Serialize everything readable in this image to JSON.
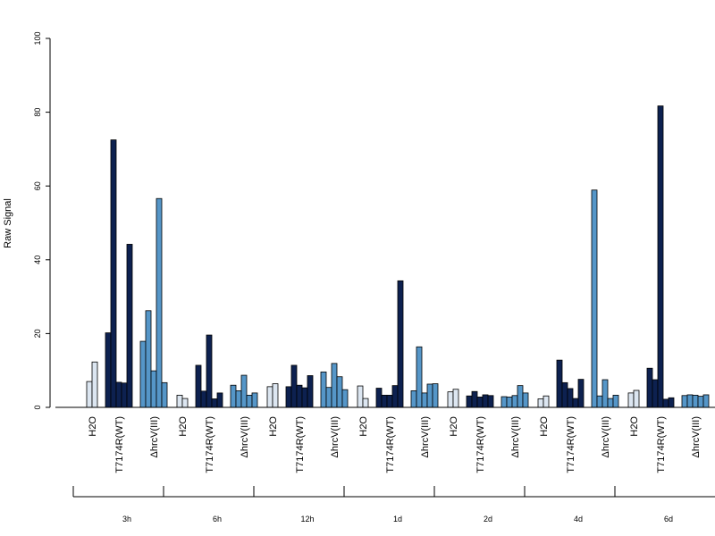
{
  "chart_data": {
    "type": "bar",
    "ylabel": "Raw Signal",
    "ylim": [
      0,
      100
    ],
    "yticks": [
      0,
      20,
      40,
      60,
      80,
      100
    ],
    "colors": {
      "H2O": "#dce6f1",
      "T7174R(WT)": "#0d2150",
      "ΔhrcV(III)": "#5596c8",
      "stroke": "#000000"
    },
    "groups": [
      {
        "label": "3h",
        "conditions": [
          {
            "label": "H2O",
            "values": [
              7.0,
              12.3
            ]
          },
          {
            "label": "T7174R(WT)",
            "values": [
              20.2,
              72.5,
              6.8,
              6.6,
              44.2
            ]
          },
          {
            "label": "ΔhrcV(III)",
            "values": [
              17.9,
              26.2,
              9.9,
              56.6,
              6.7
            ]
          }
        ]
      },
      {
        "label": "6h",
        "conditions": [
          {
            "label": "H2O",
            "values": [
              3.3,
              2.4
            ]
          },
          {
            "label": "T7174R(WT)",
            "values": [
              11.4,
              4.4,
              19.6,
              2.3,
              3.9
            ]
          },
          {
            "label": "ΔhrcV(III)",
            "values": [
              6.0,
              4.5,
              8.7,
              3.3,
              3.9
            ]
          }
        ]
      },
      {
        "label": "12h",
        "conditions": [
          {
            "label": "H2O",
            "values": [
              5.6,
              6.4
            ]
          },
          {
            "label": "T7174R(WT)",
            "values": [
              5.6,
              11.4,
              6.0,
              5.3,
              8.6
            ]
          },
          {
            "label": "ΔhrcV(III)",
            "values": [
              9.6,
              5.4,
              11.9,
              8.3,
              4.8
            ]
          }
        ]
      },
      {
        "label": "1d",
        "conditions": [
          {
            "label": "H2O",
            "values": [
              5.8,
              2.4
            ]
          },
          {
            "label": "T7174R(WT)",
            "values": [
              5.2,
              3.3,
              3.3,
              5.9,
              34.3
            ]
          },
          {
            "label": "ΔhrcV(III)",
            "values": [
              4.5,
              16.4,
              3.9,
              6.3,
              6.4
            ]
          }
        ]
      },
      {
        "label": "2d",
        "conditions": [
          {
            "label": "H2O",
            "values": [
              4.2,
              4.9
            ]
          },
          {
            "label": "T7174R(WT)",
            "values": [
              3.1,
              4.3,
              2.8,
              3.4,
              3.2
            ]
          },
          {
            "label": "ΔhrcV(III)",
            "values": [
              2.9,
              2.8,
              3.2,
              5.9,
              3.9
            ]
          }
        ]
      },
      {
        "label": "4d",
        "conditions": [
          {
            "label": "H2O",
            "values": [
              2.3,
              3.1
            ]
          },
          {
            "label": "T7174R(WT)",
            "values": [
              12.8,
              6.7,
              5.1,
              2.4,
              7.6
            ]
          },
          {
            "label": "ΔhrcV(III)",
            "values": [
              58.9,
              3.1,
              7.5,
              2.4,
              3.3
            ]
          }
        ]
      },
      {
        "label": "6d",
        "conditions": [
          {
            "label": "H2O",
            "values": [
              3.9,
              4.6
            ]
          },
          {
            "label": "T7174R(WT)",
            "values": [
              10.6,
              7.5,
              81.7,
              2.2,
              2.6
            ]
          },
          {
            "label": "ΔhrcV(III)",
            "values": [
              3.2,
              3.4,
              3.3,
              3.0,
              3.4
            ]
          }
        ]
      }
    ]
  }
}
